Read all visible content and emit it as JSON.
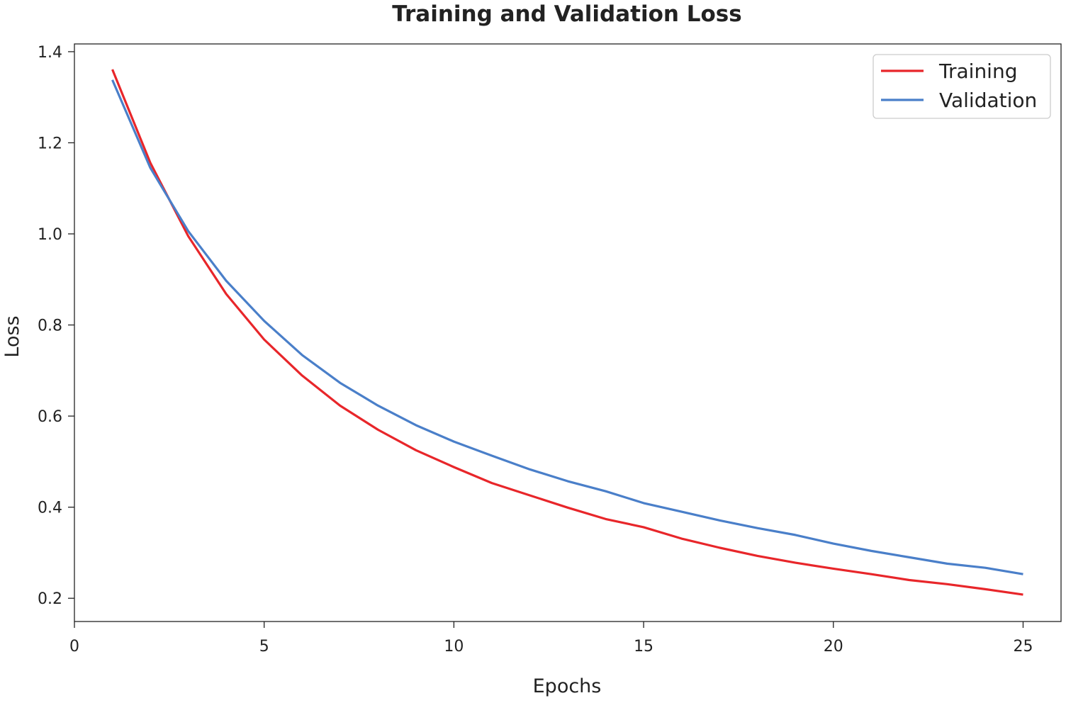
{
  "chart_data": {
    "type": "line",
    "title": "Training and Validation Loss",
    "xlabel": "Epochs",
    "ylabel": "Loss",
    "xlim": [
      0,
      26.0
    ],
    "ylim": [
      0.149,
      1.417
    ],
    "xticks": [
      0,
      5,
      10,
      15,
      20,
      25
    ],
    "xtick_labels": [
      "0",
      "5",
      "10",
      "15",
      "20",
      "25"
    ],
    "yticks": [
      0.2,
      0.4,
      0.6,
      0.8,
      1.0,
      1.2,
      1.4
    ],
    "ytick_labels": [
      "0.2",
      "0.4",
      "0.6",
      "0.8",
      "1.0",
      "1.2",
      "1.4"
    ],
    "grid": false,
    "legend_position": "top-right",
    "x": [
      1,
      2,
      3,
      4,
      5,
      6,
      7,
      8,
      9,
      10,
      11,
      12,
      13,
      14,
      15,
      16,
      17,
      18,
      19,
      20,
      21,
      22,
      23,
      24,
      25
    ],
    "series": [
      {
        "name": "Training",
        "color": "#e8262a",
        "values": [
          1.361,
          1.156,
          0.995,
          0.868,
          0.768,
          0.689,
          0.623,
          0.57,
          0.525,
          0.488,
          0.453,
          0.426,
          0.399,
          0.374,
          0.356,
          0.331,
          0.311,
          0.293,
          0.278,
          0.265,
          0.253,
          0.24,
          0.231,
          0.22,
          0.208
        ]
      },
      {
        "name": "Validation",
        "color": "#4a7fc9",
        "values": [
          1.338,
          1.145,
          1.006,
          0.897,
          0.809,
          0.734,
          0.673,
          0.623,
          0.58,
          0.544,
          0.513,
          0.483,
          0.457,
          0.435,
          0.409,
          0.39,
          0.371,
          0.354,
          0.339,
          0.32,
          0.304,
          0.29,
          0.276,
          0.267,
          0.253
        ]
      }
    ]
  }
}
